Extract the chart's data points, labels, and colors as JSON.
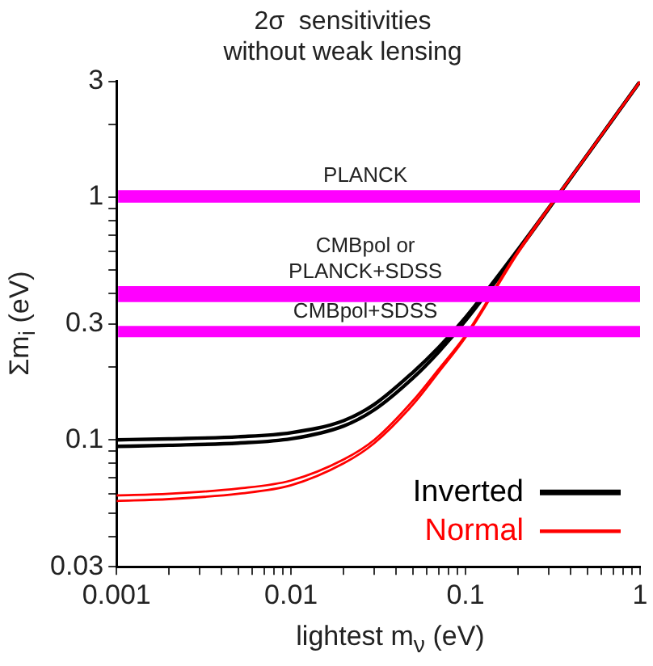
{
  "chart_data": {
    "type": "line",
    "title": "2σ  sensitivities",
    "subtitle": "without weak lensing",
    "xlabel": "lightest m$_{ν}$ (eV)",
    "ylabel": "Σm$_{i}$ (eV)",
    "x": [
      0.001,
      0.002,
      0.005,
      0.01,
      0.02,
      0.03,
      0.05,
      0.07,
      0.1,
      0.2,
      0.5,
      1
    ],
    "series": [
      {
        "name": "Inverted",
        "color": "#000000",
        "values": [
          0.1,
          0.101,
          0.103,
          0.107,
          0.12,
          0.14,
          0.19,
          0.24,
          0.32,
          0.61,
          1.5,
          3.0
        ]
      },
      {
        "color": "#000000",
        "values": [
          0.094,
          0.095,
          0.097,
          0.101,
          0.114,
          0.133,
          0.18,
          0.23,
          0.31,
          0.6,
          1.5,
          3.0
        ]
      },
      {
        "name": "Normal",
        "color": "#ff0000",
        "values": [
          0.059,
          0.06,
          0.063,
          0.068,
          0.083,
          0.1,
          0.145,
          0.195,
          0.27,
          0.6,
          1.5,
          3.0
        ]
      },
      {
        "color": "#ff0000",
        "values": [
          0.056,
          0.057,
          0.06,
          0.065,
          0.08,
          0.097,
          0.14,
          0.19,
          0.265,
          0.59,
          1.5,
          3.0
        ]
      }
    ],
    "log": "xy",
    "xlim": [
      0.001,
      1
    ],
    "ylim": [
      0.03,
      3
    ],
    "xticks": [
      0.001,
      {
        "value": 0.002,
        "label": null
      },
      {
        "value": 0.003,
        "label": null
      },
      {
        "value": 0.004,
        "label": null
      },
      {
        "value": 0.005,
        "label": null
      },
      {
        "value": 0.006,
        "label": null
      },
      {
        "value": 0.007,
        "label": null
      },
      {
        "value": 0.008,
        "label": null
      },
      {
        "value": 0.009,
        "label": null
      },
      0.01,
      {
        "value": 0.02,
        "label": null
      },
      {
        "value": 0.03,
        "label": null
      },
      {
        "value": 0.04,
        "label": null
      },
      {
        "value": 0.05,
        "label": null
      },
      {
        "value": 0.06,
        "label": null
      },
      {
        "value": 0.07,
        "label": null
      },
      {
        "value": 0.08,
        "label": null
      },
      {
        "value": 0.09,
        "label": null
      },
      0.1,
      {
        "value": 0.2,
        "label": null
      },
      {
        "value": 0.3,
        "label": null
      },
      {
        "value": 0.4,
        "label": null
      },
      {
        "value": 0.5,
        "label": null
      },
      {
        "value": 0.6,
        "label": null
      },
      {
        "value": 0.7,
        "label": null
      },
      {
        "value": 0.8,
        "label": null
      },
      {
        "value": 0.9,
        "label": null
      },
      1
    ],
    "yticks": [
      0.03,
      {
        "value": 0.04,
        "label": null
      },
      {
        "value": 0.05,
        "label": null
      },
      {
        "value": 0.06,
        "label": null
      },
      {
        "value": 0.07,
        "label": null
      },
      {
        "value": 0.08,
        "label": null
      },
      {
        "value": 0.09,
        "label": null
      },
      0.1,
      {
        "value": 0.2,
        "label": null
      },
      0.3,
      {
        "value": 0.4,
        "label": null
      },
      {
        "value": 0.5,
        "label": null
      },
      {
        "value": 0.6,
        "label": null
      },
      {
        "value": 0.7,
        "label": null
      },
      {
        "value": 0.8,
        "label": null
      },
      {
        "value": 0.9,
        "label": null
      },
      1,
      {
        "value": 2,
        "label": null
      },
      3
    ],
    "bands": [
      {
        "axis": "y",
        "from": 0.95,
        "to": 1.07,
        "label": "PLANCK",
        "color": "#ff00ff"
      },
      {
        "axis": "y",
        "from": 0.37,
        "to": 0.43,
        "label": "CMBpol or\nPLANCK+SDSS",
        "color": "#ff00ff"
      },
      {
        "axis": "y",
        "from": 0.265,
        "to": 0.295,
        "label": "CMBpol+SDSS",
        "color": "#ff00ff"
      }
    ],
    "legend": "bottom right",
    "grid": false,
    "marker": "none",
    "line_style": "solid"
  }
}
